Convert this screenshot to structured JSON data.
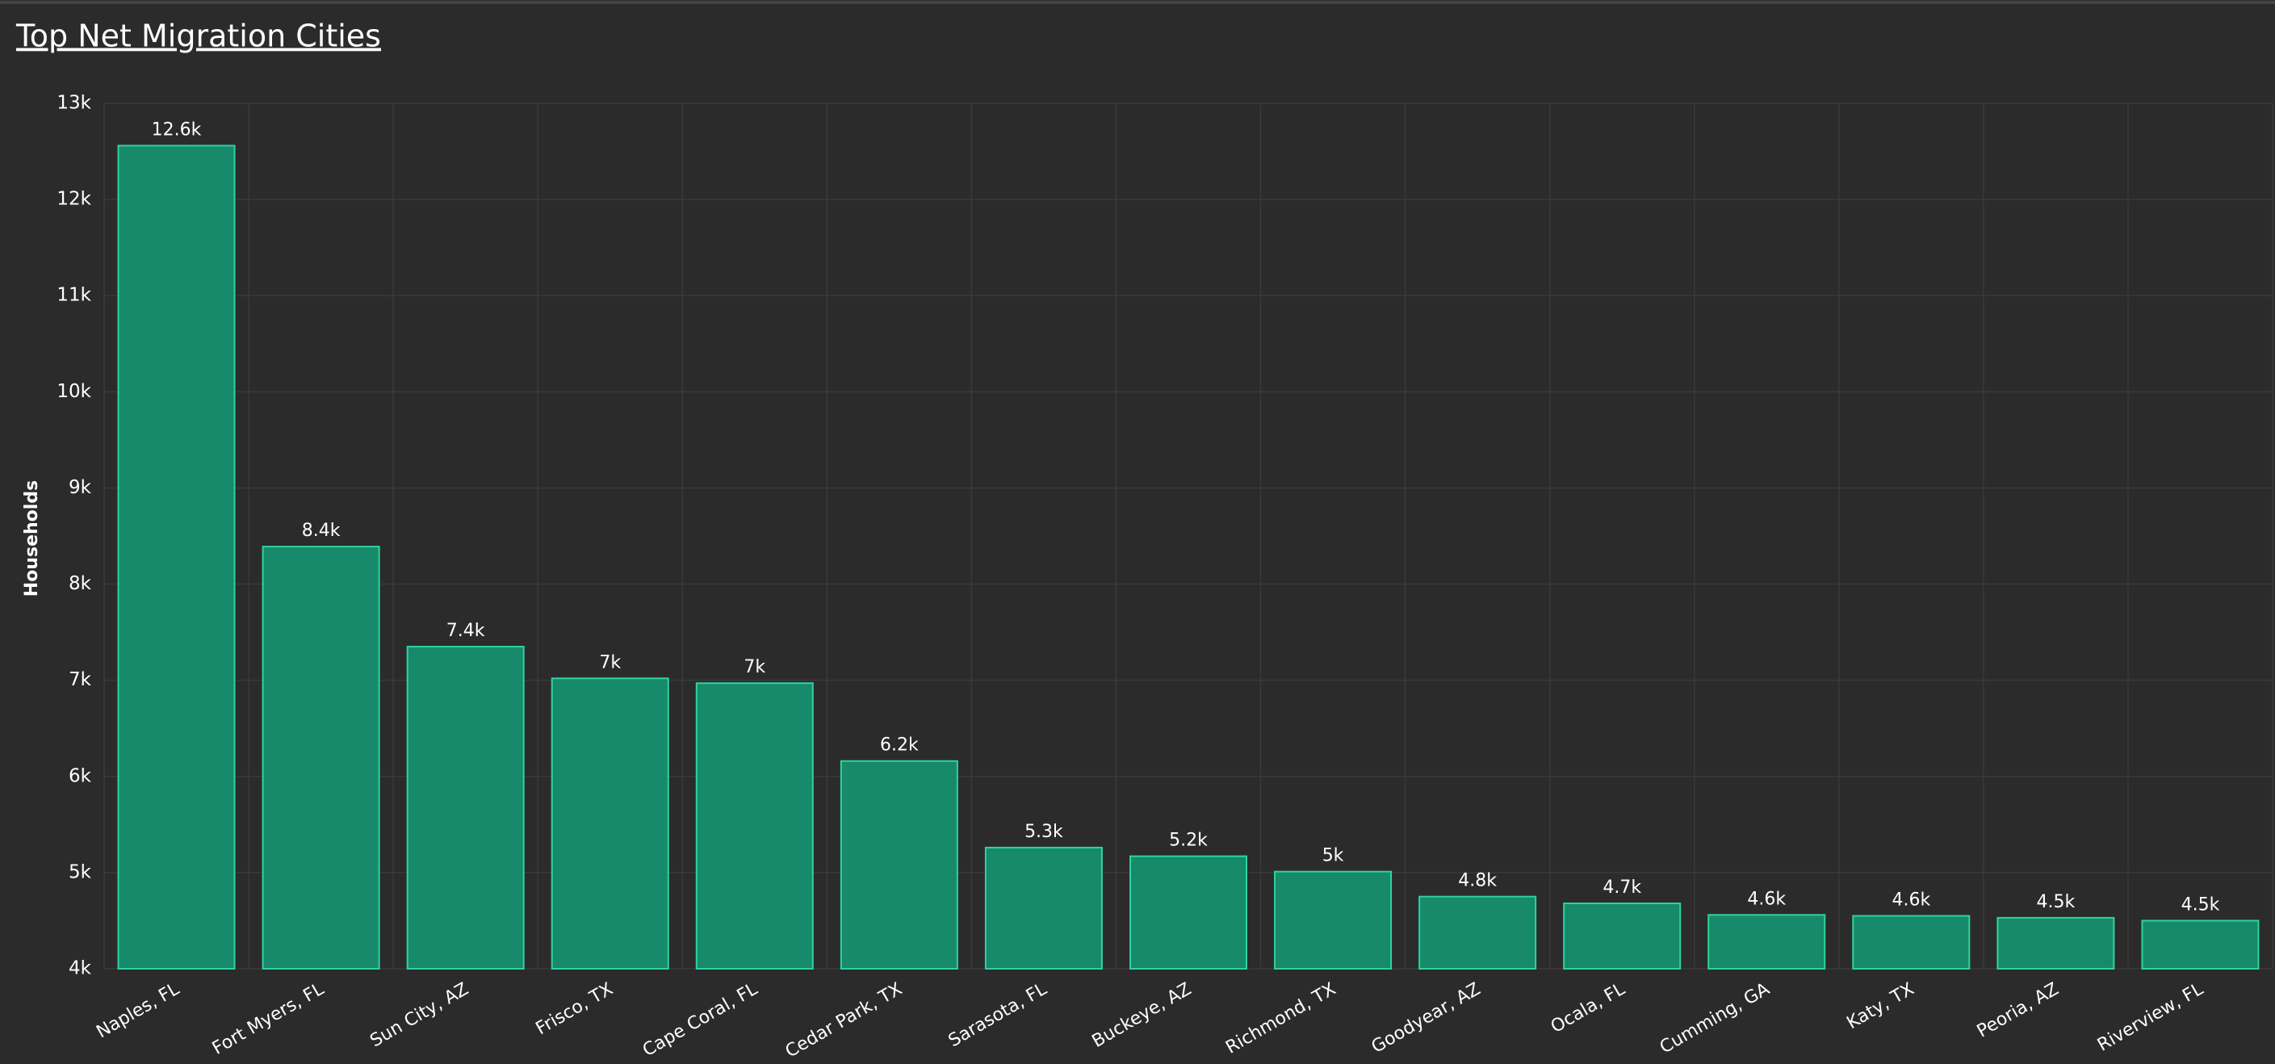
{
  "chart_data": {
    "type": "bar",
    "title": "Top Net Migration Cities",
    "y_label": "Households",
    "categories": [
      "Naples, FL",
      "Fort Myers, FL",
      "Sun City, AZ",
      "Frisco, TX",
      "Cape Coral, FL",
      "Cedar Park, TX",
      "Sarasota, FL",
      "Buckeye, AZ",
      "Richmond, TX",
      "Goodyear, AZ",
      "Ocala, FL",
      "Cumming, GA",
      "Katy, TX",
      "Peoria, AZ",
      "Riverview, FL"
    ],
    "values": [
      12560,
      8390,
      7350,
      7020,
      6970,
      6160,
      5260,
      5170,
      5010,
      4750,
      4680,
      4560,
      4550,
      4530,
      4500
    ],
    "value_labels": [
      "12.6k",
      "8.4k",
      "7.4k",
      "7k",
      "7k",
      "6.2k",
      "5.3k",
      "5.2k",
      "5k",
      "4.8k",
      "4.7k",
      "4.6k",
      "4.6k",
      "4.5k",
      "4.5k"
    ],
    "color": "#168a6a",
    "edge_color": "#2fd3a0",
    "ylim": [
      4000,
      13000
    ],
    "yticks": [
      {
        "value": 4000,
        "label": "4k"
      },
      {
        "value": 5000,
        "label": "5k"
      },
      {
        "value": 6000,
        "label": "6k"
      },
      {
        "value": 7000,
        "label": "7k"
      },
      {
        "value": 8000,
        "label": "8k"
      },
      {
        "value": 9000,
        "label": "9k"
      },
      {
        "value": 10000,
        "label": "10k"
      },
      {
        "value": 11000,
        "label": "11k"
      },
      {
        "value": 12000,
        "label": "12k"
      },
      {
        "value": 13000,
        "label": "13k"
      }
    ],
    "grid": true
  }
}
